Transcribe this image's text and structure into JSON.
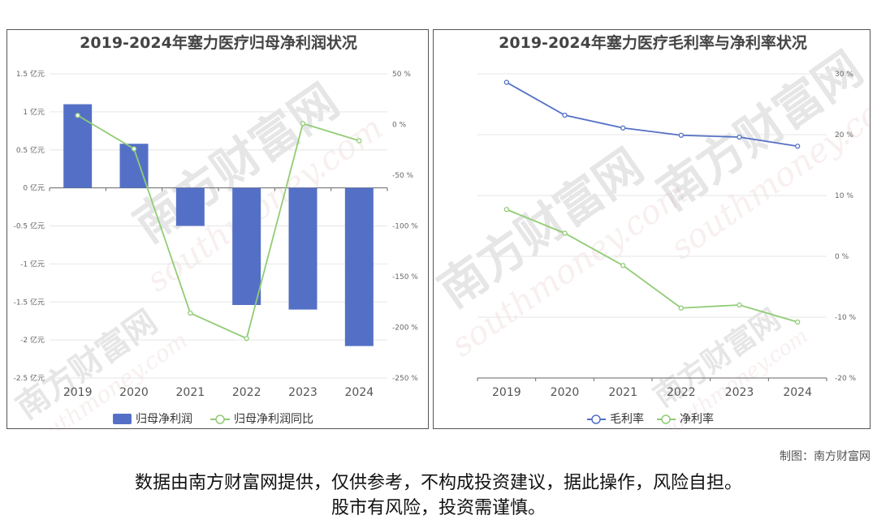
{
  "credit": "制图：南方财富网",
  "disclaimer": {
    "line1": "数据由南方财富网提供，仅供参考，不构成投资建议，据此操作，风险自担。",
    "line2": "股市有风险，投资需谨慎。"
  },
  "watermark": {
    "cn": "南方财富网",
    "en": "southmoney.com"
  },
  "chart_data": [
    {
      "type": "bar",
      "title": "2019-2024年塞力医疗归母净利润状况",
      "categories": [
        "2019",
        "2020",
        "2021",
        "2022",
        "2023",
        "2024"
      ],
      "series": [
        {
          "name": "归母净利润",
          "type": "bar",
          "axis": "left",
          "color": "#5470c6",
          "values": [
            1.1,
            0.58,
            -0.5,
            -1.54,
            -1.6,
            -2.08
          ]
        },
        {
          "name": "归母净利润同比",
          "type": "line",
          "axis": "right",
          "color": "#91cc75",
          "values": [
            9,
            -24,
            -186,
            -211,
            1,
            -16
          ]
        }
      ],
      "ylim": [
        -2.5,
        1.5
      ],
      "y_ticks": [
        "1.5 亿元",
        "1 亿元",
        "0.5 亿元",
        "0 亿元",
        "-0.5 亿元",
        "-1 亿元",
        "-1.5 亿元",
        "-2 亿元",
        "-2.5 亿元"
      ],
      "y2lim": [
        -250,
        50
      ],
      "y2_ticks": [
        "50 %",
        "0 %",
        "-50 %",
        "-100 %",
        "-150 %",
        "-200 %",
        "-250 %"
      ],
      "grid": true,
      "legend": "bottom"
    },
    {
      "type": "line",
      "title": "2019-2024年塞力医疗毛利率与净利率状况",
      "categories": [
        "2019",
        "2020",
        "2021",
        "2022",
        "2023",
        "2024"
      ],
      "series": [
        {
          "name": "毛利率",
          "color": "#5470c6",
          "values": [
            28.6,
            23.2,
            21.1,
            19.9,
            19.6,
            18.1
          ]
        },
        {
          "name": "净利率",
          "color": "#91cc75",
          "values": [
            7.7,
            3.8,
            -1.5,
            -8.5,
            -8.0,
            -10.8
          ]
        }
      ],
      "ylim": [
        -20,
        30
      ],
      "y_ticks": [
        "30 %",
        "20 %",
        "10 %",
        "0 %",
        "-10 %",
        "-20 %"
      ],
      "grid": true,
      "legend": "bottom"
    }
  ]
}
